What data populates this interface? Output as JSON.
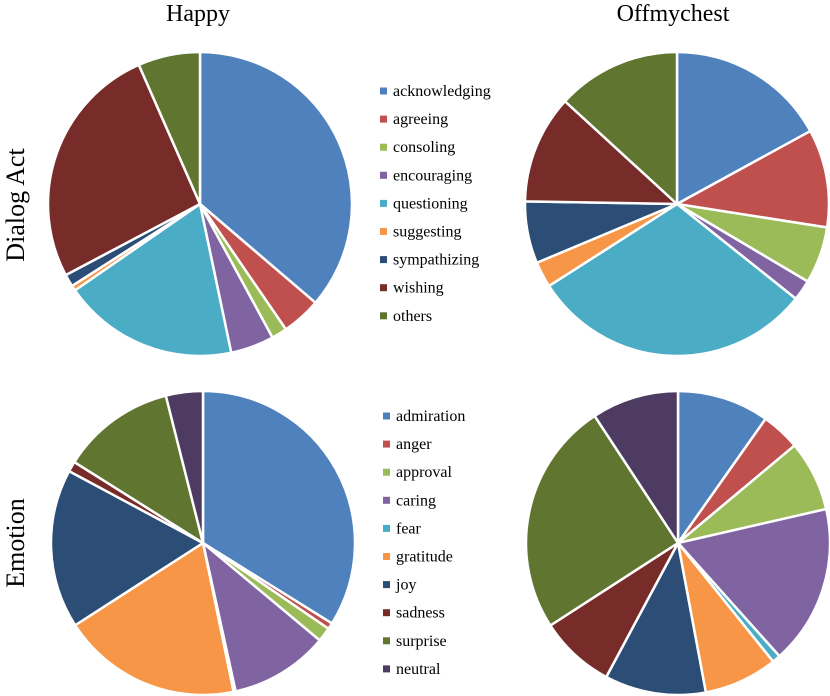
{
  "column_titles": [
    "Happy",
    "Offmychest"
  ],
  "row_titles": [
    "Dialog Act",
    "Emotion"
  ],
  "chart_data": [
    {
      "type": "pie",
      "row": "Dialog Act",
      "column": "Happy",
      "categories": [
        "acknowledging",
        "agreeing",
        "consoling",
        "encouraging",
        "questioning",
        "suggesting",
        "sympathizing",
        "wishing",
        "others"
      ],
      "values": [
        33.0,
        3.8,
        1.5,
        4.2,
        17.0,
        0.5,
        1.2,
        23.8,
        6.0
      ]
    },
    {
      "type": "pie",
      "row": "Dialog Act",
      "column": "Offmychest",
      "categories": [
        "acknowledging",
        "agreeing",
        "consoling",
        "encouraging",
        "questioning",
        "suggesting",
        "sympathizing",
        "wishing",
        "others"
      ],
      "values": [
        15.5,
        9.5,
        5.5,
        2.0,
        27.5,
        2.5,
        6.0,
        10.5,
        12.0
      ]
    },
    {
      "type": "pie",
      "row": "Emotion",
      "column": "Happy",
      "categories": [
        "admiration",
        "anger",
        "approval",
        "caring",
        "fear",
        "gratitude",
        "joy",
        "sadness",
        "surprise",
        "neutral"
      ],
      "values": [
        31.0,
        0.6,
        1.4,
        9.6,
        0.2,
        17.5,
        15.5,
        1.0,
        11.1,
        3.6
      ]
    },
    {
      "type": "pie",
      "row": "Emotion",
      "column": "Offmychest",
      "categories": [
        "admiration",
        "anger",
        "approval",
        "caring",
        "fear",
        "gratitude",
        "joy",
        "sadness",
        "surprise",
        "neutral"
      ],
      "values": [
        9.0,
        3.8,
        6.9,
        15.6,
        0.8,
        7.2,
        9.9,
        7.4,
        22.9,
        8.5
      ]
    }
  ],
  "legends": {
    "dialog_act": [
      "acknowledging",
      "agreeing",
      "consoling",
      "encouraging",
      "questioning",
      "suggesting",
      "sympathizing",
      "wishing",
      "others"
    ],
    "emotion": [
      "admiration",
      "anger",
      "approval",
      "caring",
      "fear",
      "gratitude",
      "joy",
      "sadness",
      "surprise",
      "neutral"
    ]
  },
  "colors": {
    "dialog_act": [
      "#4F81BD",
      "#C0504D",
      "#9BBB59",
      "#8064A2",
      "#4BACC6",
      "#F79646",
      "#2C4D75",
      "#772C2A",
      "#5F7530"
    ],
    "emotion": [
      "#4F81BD",
      "#C0504D",
      "#9BBB59",
      "#8064A2",
      "#4BACC6",
      "#F79646",
      "#2C4D75",
      "#772C2A",
      "#5F7530",
      "#4D3B62"
    ]
  }
}
